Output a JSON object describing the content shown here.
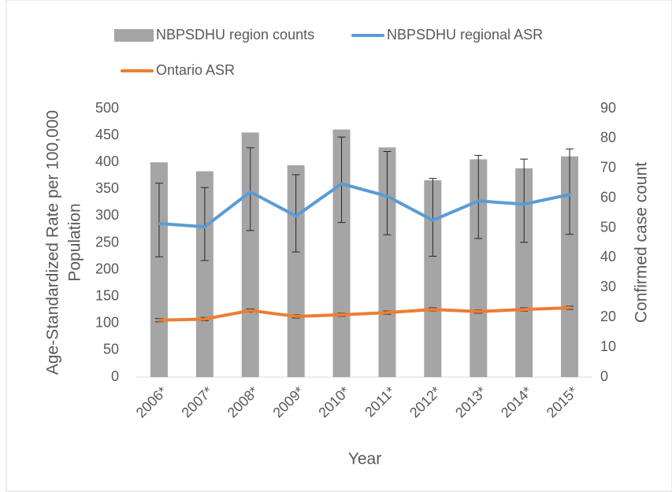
{
  "chart_data": {
    "type": "combo",
    "xlabel": "Year",
    "ylabel": [
      "Age-Standardized Rate per 100,000",
      "Population"
    ],
    "y2label": "Confirmed case count",
    "categories": [
      "2006*",
      "2007*",
      "2008*",
      "2009*",
      "2010*",
      "2011*",
      "2012*",
      "2013*",
      "2014*",
      "2015*"
    ],
    "ylim": [
      0,
      500
    ],
    "yticks": [
      0,
      50,
      100,
      150,
      200,
      250,
      300,
      350,
      400,
      450,
      500
    ],
    "y2lim": [
      0,
      90
    ],
    "y2ticks": [
      0,
      10,
      20,
      30,
      40,
      50,
      60,
      70,
      80,
      90
    ],
    "series": [
      {
        "name": "NBPSDHU region counts",
        "kind": "bar",
        "axis": "y2",
        "color": "#a5a5a5",
        "values": [
          72,
          69,
          82,
          71,
          83,
          77,
          66,
          73,
          70,
          74
        ]
      },
      {
        "name": "NBPSDHU regional ASR",
        "kind": "line",
        "axis": "y",
        "color": "#5b9bd5",
        "values": [
          286,
          280,
          345,
          300,
          360,
          337,
          292,
          328,
          322,
          340
        ],
        "lower": [
          224,
          217,
          273,
          233,
          288,
          265,
          225,
          258,
          251,
          266
        ],
        "upper": [
          361,
          353,
          427,
          377,
          447,
          420,
          370,
          413,
          406,
          425
        ]
      },
      {
        "name": "Ontario ASR",
        "kind": "line",
        "axis": "y",
        "color": "#ed7d31",
        "values": [
          106,
          108,
          124,
          113,
          116,
          120,
          126,
          122,
          126,
          129
        ],
        "lower": [
          103,
          105,
          121,
          110,
          113,
          117,
          123,
          119,
          123,
          126
        ],
        "upper": [
          109,
          111,
          127,
          116,
          119,
          123,
          129,
          125,
          129,
          132
        ]
      }
    ]
  }
}
